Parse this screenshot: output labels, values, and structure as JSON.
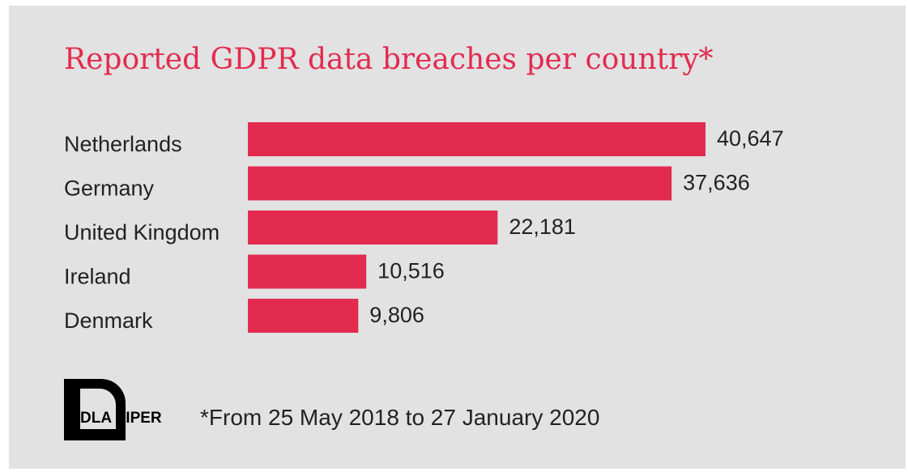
{
  "chart_data": {
    "type": "bar",
    "orientation": "horizontal",
    "title": "Reported GDPR data breaches per country*",
    "categories": [
      "Netherlands",
      "Germany",
      "United Kingdom",
      "Ireland",
      "Denmark"
    ],
    "values": [
      40647,
      37636,
      22181,
      10516,
      9806
    ],
    "value_labels": [
      "40,647",
      "37,636",
      "22,181",
      "10,516",
      "9,806"
    ],
    "bar_color": "#e32b50",
    "grid": false,
    "legend": "none"
  },
  "footnote": "*From 25 May 2018 to 27 January 2020",
  "logo": {
    "text": "DLA PIPER",
    "icon": "dla-piper-logo-icon"
  }
}
